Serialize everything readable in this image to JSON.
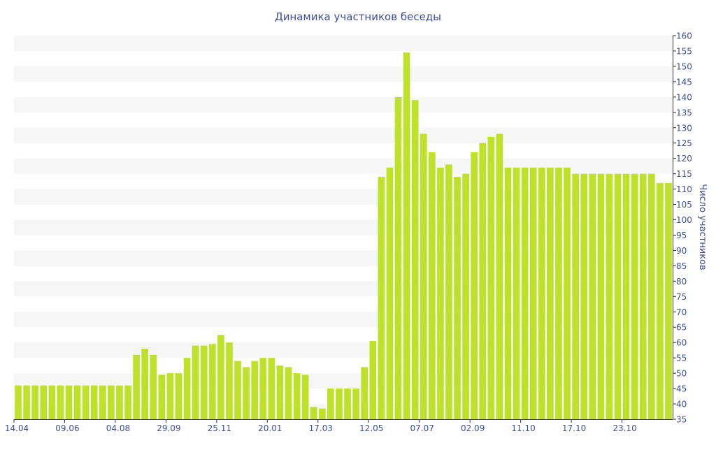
{
  "chart_data": {
    "type": "bar",
    "title": "Динамика участников беседы",
    "xlabel": "",
    "ylabel": "Число участников",
    "ylim": [
      35,
      160
    ],
    "y_ticks": [
      35,
      40,
      45,
      50,
      55,
      60,
      65,
      70,
      75,
      80,
      85,
      90,
      95,
      100,
      105,
      110,
      115,
      120,
      125,
      130,
      135,
      140,
      145,
      150,
      155,
      160
    ],
    "y_axis_side": "right",
    "grid": "horizontal bands",
    "legend": "none",
    "x_tick_labels": [
      {
        "index": 0,
        "label": "14.04"
      },
      {
        "index": 6,
        "label": "09.06"
      },
      {
        "index": 12,
        "label": "04.08"
      },
      {
        "index": 18,
        "label": "29.09"
      },
      {
        "index": 24,
        "label": "25.11"
      },
      {
        "index": 30,
        "label": "20.01"
      },
      {
        "index": 36,
        "label": "17.03"
      },
      {
        "index": 42,
        "label": "12.05"
      },
      {
        "index": 48,
        "label": "07.07"
      },
      {
        "index": 54,
        "label": "02.09"
      },
      {
        "index": 60,
        "label": "11.10"
      },
      {
        "index": 66,
        "label": "17.10"
      },
      {
        "index": 72,
        "label": "23.10"
      }
    ],
    "values": [
      46,
      46,
      46,
      46,
      46,
      46,
      46,
      46,
      46,
      46,
      46,
      46,
      46,
      46,
      56,
      58,
      56,
      49.5,
      50,
      50,
      55,
      59,
      59,
      59.5,
      62.5,
      60,
      54,
      52,
      54,
      55,
      55,
      52.5,
      52,
      50,
      49.5,
      39,
      38.5,
      45,
      45,
      45,
      45,
      52,
      60.5,
      114,
      117,
      140,
      154.5,
      139,
      128,
      122,
      117,
      118,
      114,
      115,
      122,
      125,
      127,
      128,
      117,
      117,
      117,
      117,
      117,
      117,
      117,
      117,
      115,
      115,
      115,
      115,
      115,
      115,
      115,
      115,
      115,
      115,
      112,
      112
    ],
    "colors": {
      "bar": "#bfe12a",
      "band": "#f6f6f6",
      "text": "#3c4f95",
      "axis": "#333333"
    }
  }
}
